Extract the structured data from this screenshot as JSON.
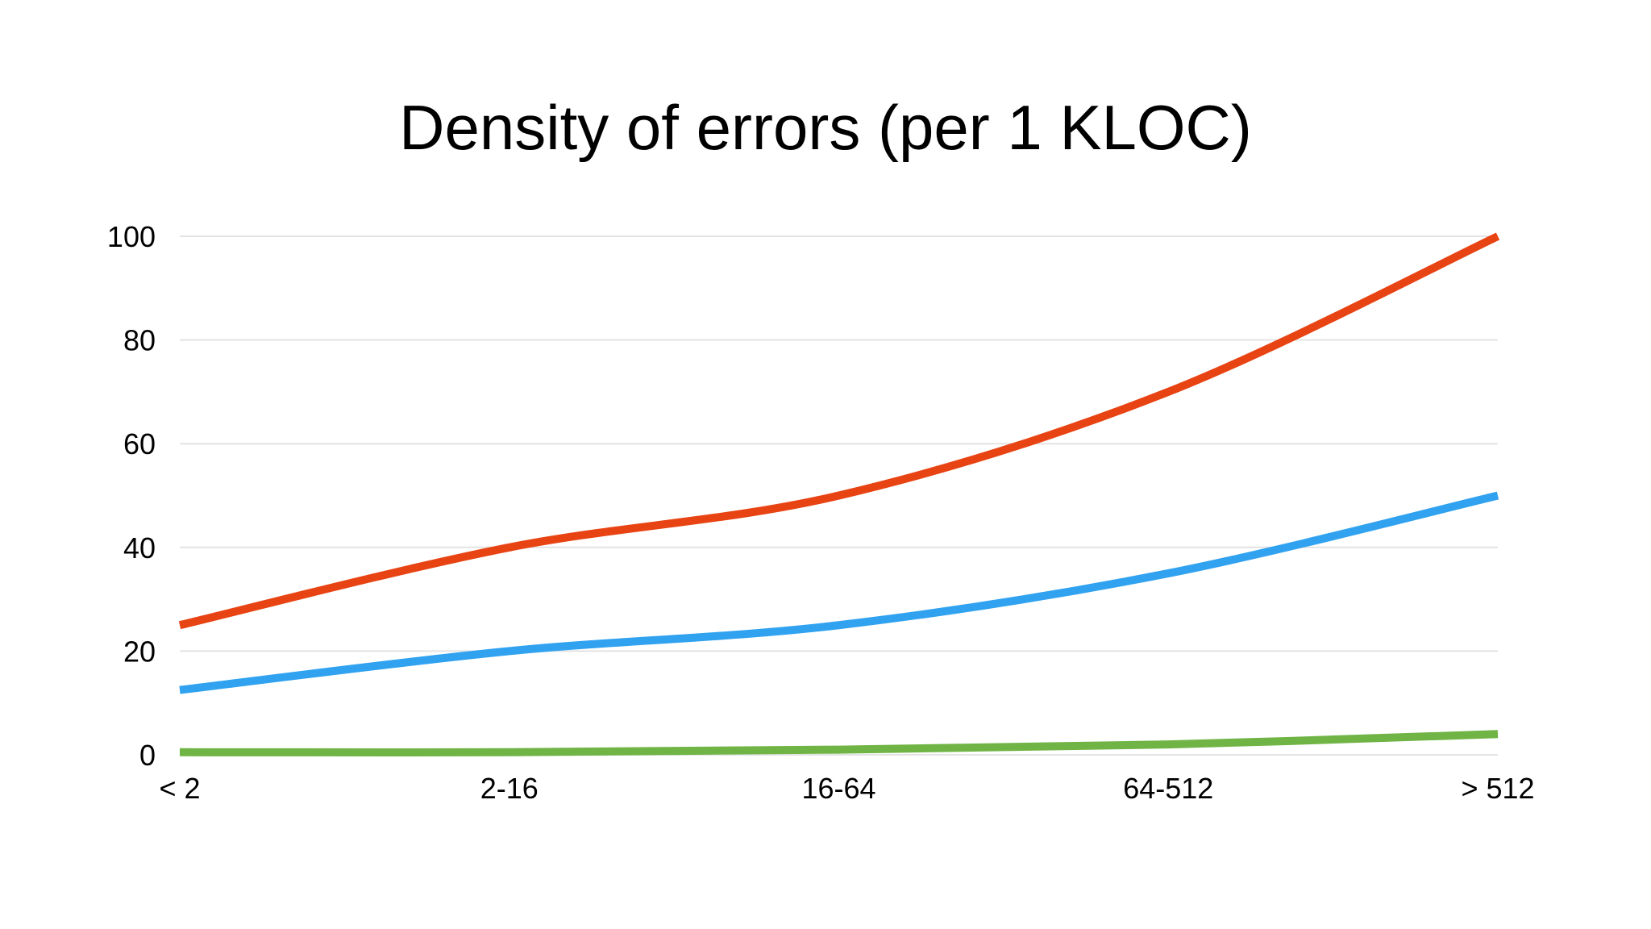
{
  "title": "Density of errors (per 1 KLOC)",
  "colors": {
    "background": "#ffffff",
    "gridline": "#e3e3e3",
    "text": "#000000"
  },
  "chart_data": {
    "type": "line",
    "title": "Density of errors (per 1 KLOC)",
    "categories": [
      "< 2",
      "2-16",
      "16-64",
      "64-512",
      "> 512"
    ],
    "series": [
      {
        "name": "red",
        "color": "#E84313",
        "values": [
          25,
          40,
          50,
          70,
          100
        ]
      },
      {
        "name": "blue",
        "color": "#30A2F0",
        "values": [
          12.5,
          20,
          25,
          35,
          50
        ]
      },
      {
        "name": "green",
        "color": "#6FB444",
        "values": [
          0.5,
          0.5,
          1,
          2,
          4
        ]
      }
    ],
    "xlabel": "",
    "ylabel": "",
    "ylim": [
      0,
      100
    ],
    "yticks": [
      0,
      20,
      40,
      60,
      80,
      100
    ],
    "grid": true,
    "legend": "none",
    "smooth": true,
    "line_width": 10
  }
}
